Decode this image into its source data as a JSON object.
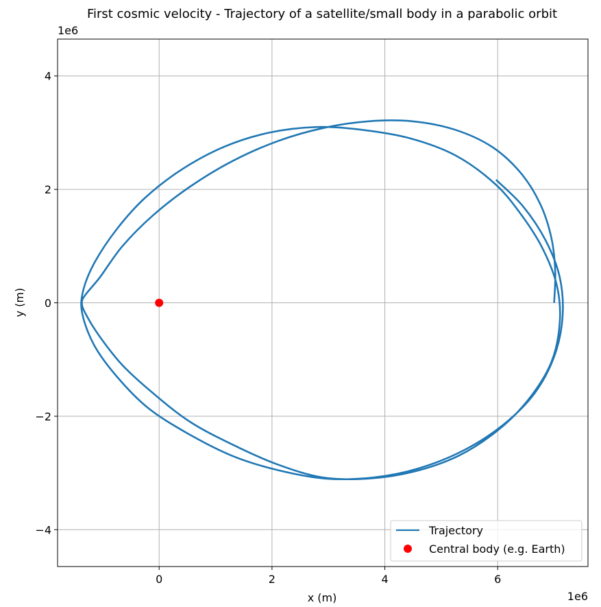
{
  "chart_data": {
    "type": "line",
    "title": "First cosmic velocity - Trajectory of a satellite/small body in a parabolic orbit",
    "xlabel": "x (m)",
    "ylabel": "y (m)",
    "x_offset_label": "1e6",
    "y_offset_label": "1e6",
    "xlim": [
      -1.8,
      7.6
    ],
    "ylim": [
      -4.65,
      4.65
    ],
    "xticks": [
      0,
      2,
      4,
      6
    ],
    "xtick_labels": [
      "0",
      "2",
      "4",
      "6"
    ],
    "yticks": [
      -4,
      -2,
      0,
      2,
      4
    ],
    "ytick_labels": [
      "−4",
      "−2",
      "0",
      "2",
      "4"
    ],
    "grid": true,
    "legend_position": "lower-right",
    "aspect": "equal",
    "series": [
      {
        "name": "Trajectory",
        "kind": "line",
        "color": "#1f77b4",
        "x": [
          7.0,
          7.02,
          6.95,
          6.75,
          6.4,
          5.9,
          5.25,
          4.5,
          3.7,
          2.9,
          2.1,
          1.3,
          0.55,
          -0.1,
          -0.65,
          -1.05,
          -1.3,
          -1.37,
          -1.3,
          -1.05,
          -0.65,
          -0.1,
          0.55,
          1.3,
          2.1,
          2.9,
          3.7,
          4.5,
          5.3,
          6.0,
          6.55,
          6.95,
          7.1,
          7.05,
          6.8,
          6.42,
          5.95,
          5.25,
          4.45,
          3.6,
          2.8,
          1.95,
          1.15,
          0.4,
          -0.25,
          -0.75,
          -1.15,
          -1.35,
          -1.36,
          -1.15,
          -0.75,
          -0.2,
          0.5,
          1.3,
          2.1,
          2.95,
          3.8,
          4.6,
          5.4,
          6.1,
          6.65,
          7.0,
          7.15,
          7.1,
          6.85,
          6.45,
          5.97
        ],
        "y": [
          0.0,
          0.55,
          1.15,
          1.75,
          2.3,
          2.75,
          3.05,
          3.2,
          3.2,
          3.08,
          2.85,
          2.5,
          2.05,
          1.55,
          1.0,
          0.45,
          0.15,
          0.0,
          -0.2,
          -0.6,
          -1.1,
          -1.6,
          -2.1,
          -2.5,
          -2.85,
          -3.08,
          -3.1,
          -2.98,
          -2.7,
          -2.25,
          -1.7,
          -1.05,
          -0.35,
          0.3,
          0.95,
          1.55,
          2.1,
          2.6,
          2.9,
          3.05,
          3.1,
          3.0,
          2.75,
          2.35,
          1.85,
          1.3,
          0.7,
          0.2,
          -0.2,
          -0.75,
          -1.3,
          -1.85,
          -2.3,
          -2.7,
          -2.95,
          -3.1,
          -3.08,
          -2.92,
          -2.6,
          -2.15,
          -1.6,
          -0.95,
          -0.25,
          0.45,
          1.1,
          1.7,
          2.17
        ]
      },
      {
        "name": "Central body (e.g. Earth)",
        "kind": "point",
        "color": "#ff0000",
        "x": [
          0
        ],
        "y": [
          0
        ]
      }
    ]
  }
}
